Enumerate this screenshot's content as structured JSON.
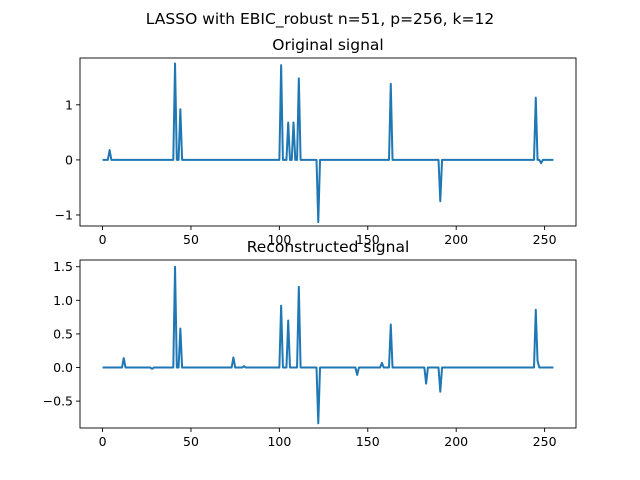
{
  "figure": {
    "suptitle": "LASSO with EBIC_robust n=51, p=256, k=12",
    "line_color": "#1f77b4"
  },
  "chart_data": [
    {
      "type": "line",
      "title": "Original signal",
      "xlabel": "",
      "ylabel": "",
      "xlim": [
        -12.75,
        267.75
      ],
      "ylim": [
        -1.2,
        1.85
      ],
      "x_ticks": [
        0,
        50,
        100,
        150,
        200,
        250
      ],
      "y_ticks": [
        -1,
        0,
        1
      ],
      "y_tick_labels": [
        "−1",
        "0",
        "1"
      ],
      "grid": false,
      "legend": "none",
      "series": [
        {
          "x_range": [
            0,
            255
          ],
          "baseline": 0,
          "spikes": [
            {
              "x": 4,
              "y": 0.18
            },
            {
              "x": 41,
              "y": 1.75
            },
            {
              "x": 44,
              "y": 0.92
            },
            {
              "x": 101,
              "y": 1.72
            },
            {
              "x": 105,
              "y": 0.68
            },
            {
              "x": 108,
              "y": 0.68
            },
            {
              "x": 111,
              "y": 1.48
            },
            {
              "x": 122,
              "y": -1.13
            },
            {
              "x": 163,
              "y": 1.38
            },
            {
              "x": 191,
              "y": -0.75
            },
            {
              "x": 245,
              "y": 1.13
            },
            {
              "x": 248,
              "y": -0.06
            }
          ]
        }
      ]
    },
    {
      "type": "line",
      "title": "Reconstructed signal",
      "xlabel": "",
      "ylabel": "",
      "xlim": [
        -12.75,
        267.75
      ],
      "ylim": [
        -0.9,
        1.6
      ],
      "x_ticks": [
        0,
        50,
        100,
        150,
        200,
        250
      ],
      "y_ticks": [
        -0.5,
        0.0,
        0.5,
        1.0,
        1.5
      ],
      "y_tick_labels": [
        "−0.5",
        "0.0",
        "0.5",
        "1.0",
        "1.5"
      ],
      "grid": false,
      "legend": "none",
      "series": [
        {
          "x_range": [
            0,
            255
          ],
          "baseline": 0,
          "spikes": [
            {
              "x": 12,
              "y": 0.14
            },
            {
              "x": 28,
              "y": -0.02
            },
            {
              "x": 41,
              "y": 1.5
            },
            {
              "x": 44,
              "y": 0.58
            },
            {
              "x": 74,
              "y": 0.15
            },
            {
              "x": 80,
              "y": 0.02
            },
            {
              "x": 101,
              "y": 0.92
            },
            {
              "x": 105,
              "y": 0.7
            },
            {
              "x": 111,
              "y": 1.2
            },
            {
              "x": 122,
              "y": -0.83
            },
            {
              "x": 144,
              "y": -0.11
            },
            {
              "x": 158,
              "y": 0.07
            },
            {
              "x": 163,
              "y": 0.64
            },
            {
              "x": 183,
              "y": -0.24
            },
            {
              "x": 191,
              "y": -0.36
            },
            {
              "x": 245,
              "y": 0.86
            },
            {
              "x": 246,
              "y": 0.1
            }
          ]
        }
      ]
    }
  ]
}
